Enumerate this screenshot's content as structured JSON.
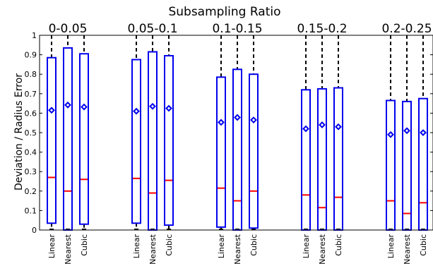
{
  "chart_data": {
    "type": "boxplot",
    "title": "Subsampling Ratio",
    "ylabel": "Deviation / Radius Error",
    "xlabel": "",
    "ylim": [
      0,
      1
    ],
    "yticks": [
      "0",
      "0.1",
      "0.2",
      "0.3",
      "0.4",
      "0.5",
      "0.6",
      "0.7",
      "0.8",
      "0.9",
      "1"
    ],
    "grid": false,
    "colors": {
      "box": "#0000ee",
      "median": "#ff0000",
      "whisker": "#000000",
      "mean": "#0000ee"
    },
    "groups": [
      {
        "label": "0-0.05",
        "boxes": [
          {
            "name": "Linear",
            "q1": 0.035,
            "median": 0.27,
            "q3": 0.885,
            "mean": 0.615,
            "whisker_low": 0.0,
            "whisker_high": 1.0
          },
          {
            "name": "Nearest",
            "q1": 0.0,
            "median": 0.2,
            "q3": 0.935,
            "mean": 0.642,
            "whisker_low": 0.0,
            "whisker_high": 1.0
          },
          {
            "name": "Cubic",
            "q1": 0.03,
            "median": 0.26,
            "q3": 0.905,
            "mean": 0.632,
            "whisker_low": 0.0,
            "whisker_high": 1.0
          }
        ]
      },
      {
        "label": "0.05-0.1",
        "boxes": [
          {
            "name": "Linear",
            "q1": 0.035,
            "median": 0.265,
            "q3": 0.875,
            "mean": 0.61,
            "whisker_low": 0.0,
            "whisker_high": 1.0
          },
          {
            "name": "Nearest",
            "q1": 0.0,
            "median": 0.19,
            "q3": 0.915,
            "mean": 0.635,
            "whisker_low": 0.0,
            "whisker_high": 1.0
          },
          {
            "name": "Cubic",
            "q1": 0.025,
            "median": 0.255,
            "q3": 0.895,
            "mean": 0.625,
            "whisker_low": 0.0,
            "whisker_high": 1.0
          }
        ]
      },
      {
        "label": "0.1-0.15",
        "boxes": [
          {
            "name": "Linear",
            "q1": 0.015,
            "median": 0.215,
            "q3": 0.785,
            "mean": 0.553,
            "whisker_low": 0.0,
            "whisker_high": 1.0
          },
          {
            "name": "Nearest",
            "q1": 0.0,
            "median": 0.15,
            "q3": 0.825,
            "mean": 0.578,
            "whisker_low": 0.0,
            "whisker_high": 1.0
          },
          {
            "name": "Cubic",
            "q1": 0.01,
            "median": 0.2,
            "q3": 0.8,
            "mean": 0.565,
            "whisker_low": 0.0,
            "whisker_high": 1.0
          }
        ]
      },
      {
        "label": "0.15-0.2",
        "boxes": [
          {
            "name": "Linear",
            "q1": 0.0,
            "median": 0.18,
            "q3": 0.72,
            "mean": 0.52,
            "whisker_low": 0.0,
            "whisker_high": 1.0
          },
          {
            "name": "Nearest",
            "q1": 0.0,
            "median": 0.115,
            "q3": 0.725,
            "mean": 0.54,
            "whisker_low": 0.0,
            "whisker_high": 1.0
          },
          {
            "name": "Cubic",
            "q1": 0.0,
            "median": 0.168,
            "q3": 0.73,
            "mean": 0.53,
            "whisker_low": 0.0,
            "whisker_high": 1.0
          }
        ]
      },
      {
        "label": "0.2-0.25",
        "boxes": [
          {
            "name": "Linear",
            "q1": 0.0,
            "median": 0.15,
            "q3": 0.665,
            "mean": 0.49,
            "whisker_low": 0.0,
            "whisker_high": 1.0
          },
          {
            "name": "Nearest",
            "q1": 0.0,
            "median": 0.085,
            "q3": 0.66,
            "mean": 0.51,
            "whisker_low": 0.0,
            "whisker_high": 1.0
          },
          {
            "name": "Cubic",
            "q1": 0.0,
            "median": 0.14,
            "q3": 0.675,
            "mean": 0.5,
            "whisker_low": 0.0,
            "whisker_high": 1.0
          }
        ]
      }
    ]
  }
}
